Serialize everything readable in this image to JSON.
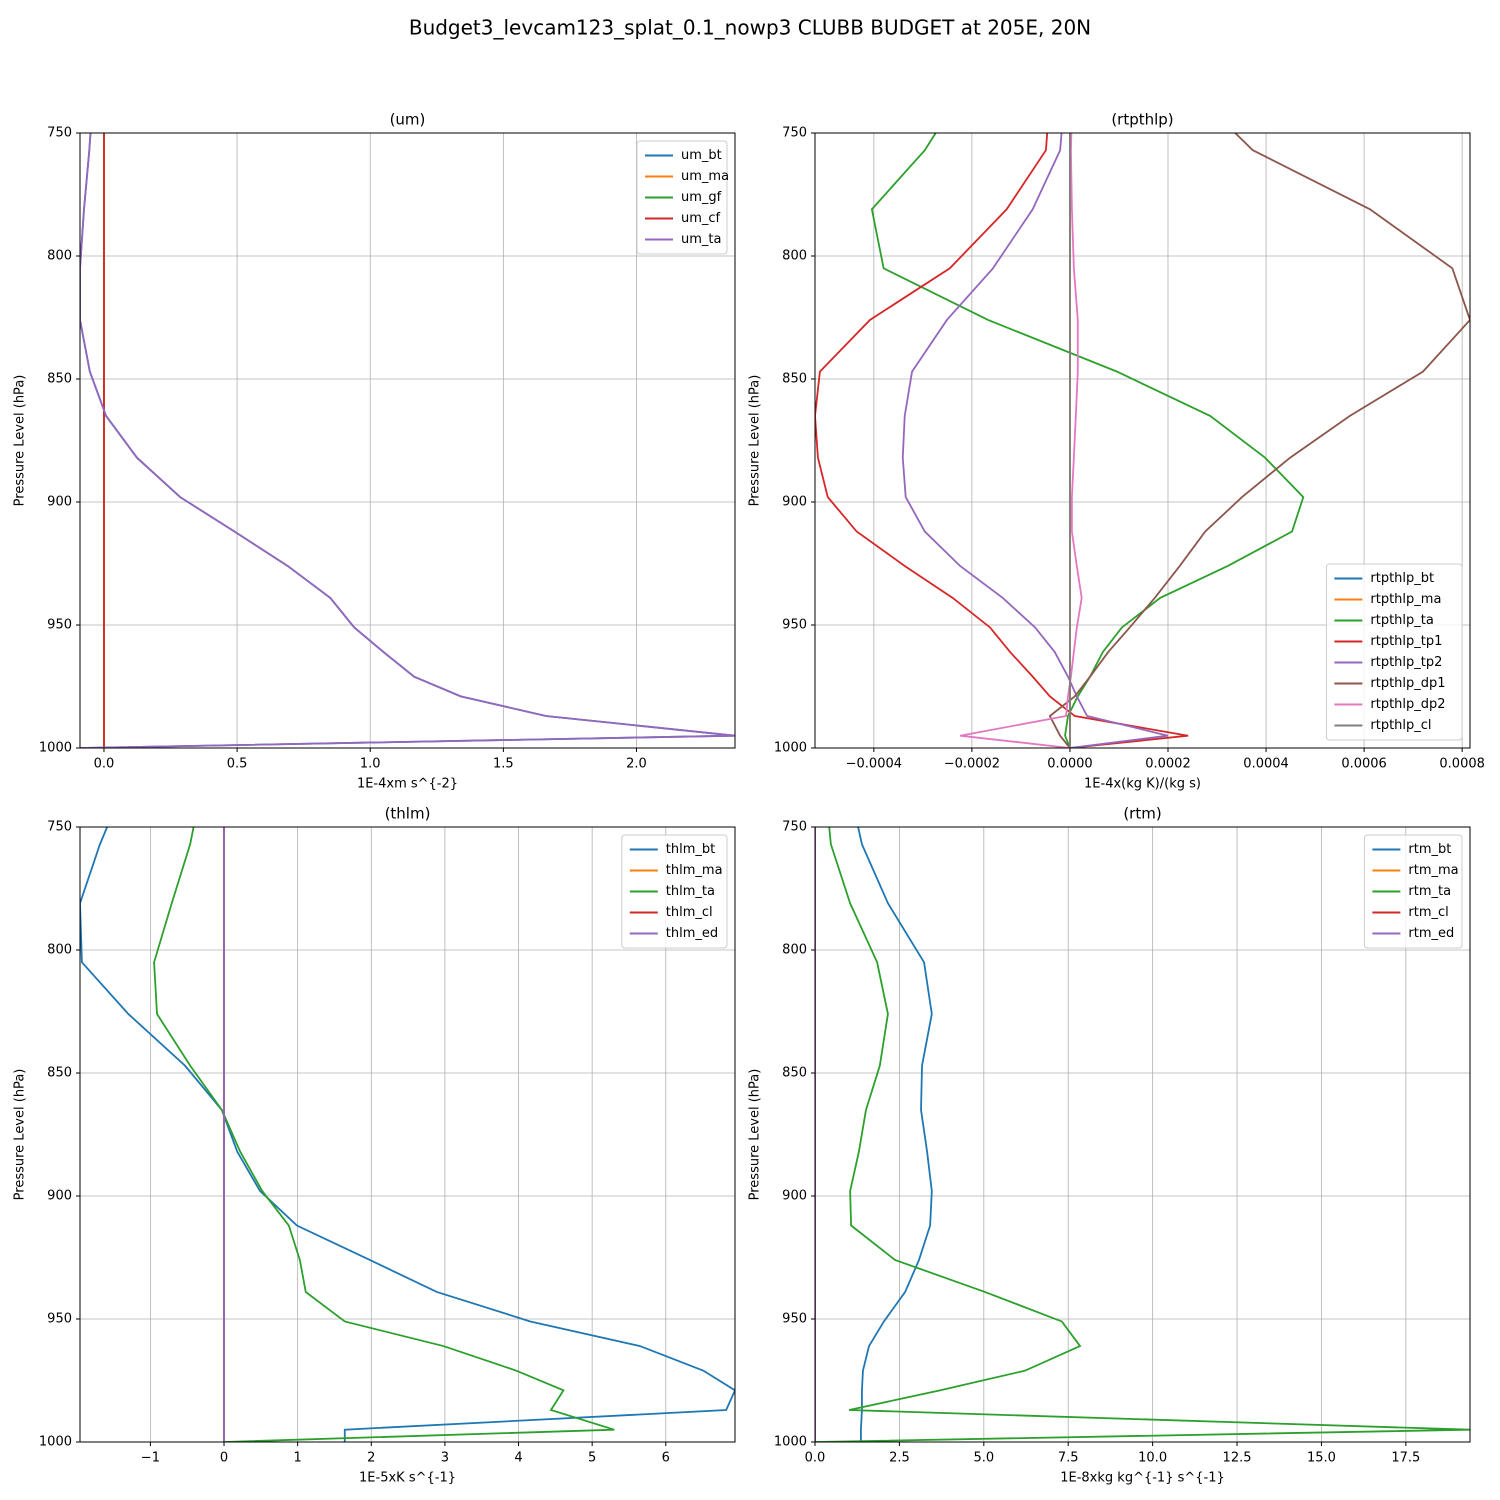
{
  "title": "Budget3_levcam123_splat_0.1_nowp3 CLUBB BUDGET at 205E, 20N",
  "chart_data": [
    {
      "type": "line",
      "title": "(um)",
      "xlabel": "1E-4xm s^{-2}",
      "ylabel": "Pressure Level (hPa)",
      "y": [
        733,
        757,
        781,
        805,
        826,
        847,
        865,
        882,
        898,
        912,
        926,
        939,
        951,
        961,
        971,
        979,
        987,
        995,
        1000
      ],
      "series": [
        {
          "name": "um_bt",
          "color": "#1f77b4",
          "values": [
            -0.04,
            -0.055,
            -0.075,
            -0.09,
            -0.09,
            -0.053,
            0.008,
            0.124,
            0.286,
            0.49,
            0.69,
            0.85,
            0.94,
            1.05,
            1.165,
            1.34,
            1.66,
            2.37,
            -0.09
          ]
        },
        {
          "name": "um_ma",
          "color": "#ff7f0e",
          "values": [
            0,
            0,
            0,
            0,
            0,
            0,
            0,
            0,
            0,
            0,
            0,
            0,
            0,
            0,
            0,
            0,
            0,
            0,
            0
          ]
        },
        {
          "name": "um_gf",
          "color": "#2ca02c",
          "values": [
            0,
            0,
            0,
            0,
            0,
            0,
            0,
            0,
            0,
            0,
            0,
            0,
            0,
            0,
            0,
            0,
            0,
            0,
            0
          ]
        },
        {
          "name": "um_cf",
          "color": "#d62728",
          "values": [
            0,
            0,
            0,
            0,
            0,
            0,
            0,
            0,
            0,
            0,
            0,
            0,
            0,
            0,
            0,
            0,
            0,
            0,
            0
          ]
        },
        {
          "name": "um_ta",
          "color": "#9467bd",
          "values": [
            -0.04,
            -0.055,
            -0.075,
            -0.09,
            -0.09,
            -0.053,
            0.008,
            0.124,
            0.286,
            0.49,
            0.69,
            0.85,
            0.94,
            1.05,
            1.165,
            1.34,
            1.66,
            2.37,
            -0.09
          ]
        }
      ],
      "xlim": [
        -0.09,
        2.37
      ],
      "ylim": [
        1000,
        750
      ],
      "xticks": [
        {
          "value": 0,
          "label": "0.0"
        },
        0.5,
        {
          "value": 1,
          "label": "1.0"
        },
        1.5,
        {
          "value": 2,
          "label": "2.0"
        }
      ],
      "yticks": [
        750,
        800,
        850,
        900,
        950,
        1000
      ],
      "grid": true,
      "legend": "upper right"
    },
    {
      "type": "line",
      "title": "(rtpthlp)",
      "xlabel": "1E-4x(kg K)/(kg s)",
      "ylabel": "Pressure Level (hPa)",
      "y": [
        733,
        757,
        781,
        805,
        826,
        847,
        865,
        882,
        898,
        912,
        926,
        939,
        951,
        961,
        971,
        979,
        987,
        995,
        1000
      ],
      "series": [
        {
          "name": "rtpthlp_bt",
          "color": "#1f77b4",
          "values": [
            0,
            0,
            0,
            0,
            0,
            0,
            0,
            0,
            0,
            0,
            0,
            0,
            0,
            0,
            0,
            0,
            0,
            0,
            0
          ]
        },
        {
          "name": "rtpthlp_ma",
          "color": "#ff7f0e",
          "values": [
            0,
            0,
            0,
            0,
            0,
            0,
            0,
            0,
            0,
            0,
            0,
            0,
            0,
            0,
            0,
            0,
            0,
            0,
            0
          ]
        },
        {
          "name": "rtpthlp_ta",
          "color": "#2ca02c",
          "values": [
            -0.00022,
            -0.000296,
            -0.000404,
            -0.00038,
            -0.000167,
            9.6e-05,
            0.000286,
            0.000398,
            0.000476,
            0.000453,
            0.000322,
            0.000184,
            0.000106,
            6.7e-05,
            4.1e-05,
            1.6e-05,
            -4e-06,
            -1e-05,
            0
          ]
        },
        {
          "name": "rtpthlp_tp1",
          "color": "#d62728",
          "values": [
            -4e-05,
            -4.9e-05,
            -0.000129,
            -0.000245,
            -0.000408,
            -0.00051,
            -0.00052,
            -0.000514,
            -0.000494,
            -0.000435,
            -0.000337,
            -0.000239,
            -0.000163,
            -0.000122,
            -7.6e-05,
            -4.1e-05,
            1e-05,
            0.000241,
            0
          ]
        },
        {
          "name": "rtpthlp_tp2",
          "color": "#9467bd",
          "values": [
            -1e-05,
            -2e-05,
            -7.6e-05,
            -0.000157,
            -0.000251,
            -0.000322,
            -0.000337,
            -0.000341,
            -0.000335,
            -0.000296,
            -0.000224,
            -0.000137,
            -7.1e-05,
            -3.1e-05,
            -4e-06,
            1.4e-05,
            3.5e-05,
            0.0002,
            0
          ]
        },
        {
          "name": "rtpthlp_dp1",
          "color": "#8c564b",
          "values": [
            0.00025,
            0.000373,
            0.000612,
            0.00078,
            0.000816,
            0.00072,
            0.000571,
            0.000449,
            0.000351,
            0.000276,
            0.000224,
            0.000173,
            0.000122,
            7.8e-05,
            4.1e-05,
            1e-05,
            -4.1e-05,
            -2e-05,
            0
          ]
        },
        {
          "name": "rtpthlp_dp2",
          "color": "#e377c2",
          "values": [
            5e-06,
            2e-06,
            4e-06,
            8e-06,
            1.6e-05,
            1.6e-05,
            1.2e-05,
            8e-06,
            4e-06,
            4e-06,
            1.4e-05,
            2.4e-05,
            1.4e-05,
            8e-06,
            2e-06,
            -4e-06,
            -8e-06,
            -0.000224,
            0
          ]
        },
        {
          "name": "rtpthlp_cl",
          "color": "#7f7f7f",
          "values": [
            0,
            0,
            0,
            0,
            0,
            0,
            0,
            0,
            0,
            0,
            0,
            0,
            0,
            0,
            0,
            0,
            0,
            0,
            0
          ]
        }
      ],
      "xlim": [
        -0.00052,
        0.000816
      ],
      "ylim": [
        1000,
        750
      ],
      "xticks": [
        {
          "value": -0.0004,
          "label": "−0.0004"
        },
        {
          "value": -0.0002,
          "label": "−0.0002"
        },
        {
          "value": 0,
          "label": "0.0000"
        },
        {
          "value": 0.0002,
          "label": "0.0002"
        },
        {
          "value": 0.0004,
          "label": "0.0004"
        },
        {
          "value": 0.0006,
          "label": "0.0006"
        },
        {
          "value": 0.0008,
          "label": "0.0008"
        }
      ],
      "yticks": [
        750,
        800,
        850,
        900,
        950,
        1000
      ],
      "grid": true,
      "legend": "lower right"
    },
    {
      "type": "line",
      "title": "(thlm)",
      "xlabel": "1E-5xK s^{-1}",
      "ylabel": "Pressure Level (hPa)",
      "y": [
        733,
        757,
        781,
        805,
        826,
        847,
        865,
        882,
        898,
        912,
        926,
        939,
        951,
        961,
        971,
        979,
        987,
        995,
        1000
      ],
      "series": [
        {
          "name": "thlm_bt",
          "color": "#1f77b4",
          "values": [
            -1.35,
            -1.685,
            -1.956,
            -1.93,
            -1.3,
            -0.53,
            -0.03,
            0.18,
            0.49,
            0.99,
            1.98,
            2.89,
            4.16,
            5.65,
            6.51,
            6.94,
            6.82,
            1.64,
            1.64
          ]
        },
        {
          "name": "thlm_ma",
          "color": "#ff7f0e",
          "values": [
            0,
            0,
            0,
            0,
            0,
            0,
            0,
            0,
            0,
            0,
            0,
            0,
            0,
            0,
            0,
            0,
            0,
            0,
            0
          ]
        },
        {
          "name": "thlm_ta",
          "color": "#2ca02c",
          "values": [
            -0.3,
            -0.46,
            -0.71,
            -0.95,
            -0.91,
            -0.46,
            -0.03,
            0.22,
            0.52,
            0.88,
            1.03,
            1.11,
            1.64,
            2.98,
            3.97,
            4.61,
            4.44,
            5.3,
            0
          ]
        },
        {
          "name": "thlm_cl",
          "color": "#d62728",
          "values": [
            0,
            0,
            0,
            0,
            0,
            0,
            0,
            0,
            0,
            0,
            0,
            0,
            0,
            0,
            0,
            0,
            0,
            0,
            0
          ]
        },
        {
          "name": "thlm_ed",
          "color": "#9467bd",
          "values": [
            0,
            0,
            0,
            0,
            0,
            0,
            0,
            0,
            0,
            0,
            0,
            0,
            0,
            0,
            0,
            0,
            0,
            0,
            0
          ]
        }
      ],
      "xlim": [
        -1.956,
        6.94
      ],
      "ylim": [
        1000,
        750
      ],
      "xticks": [
        {
          "value": -1,
          "label": "−1"
        },
        0,
        1,
        2,
        3,
        4,
        5,
        6
      ],
      "yticks": [
        750,
        800,
        850,
        900,
        950,
        1000
      ],
      "grid": true,
      "legend": "upper right"
    },
    {
      "type": "line",
      "title": "(rtm)",
      "xlabel": "1E-8xkg kg^{-1} s^{-1}",
      "ylabel": "Pressure Level (hPa)",
      "y": [
        733,
        757,
        781,
        805,
        826,
        847,
        865,
        882,
        898,
        912,
        926,
        939,
        951,
        961,
        971,
        979,
        987,
        995,
        1000
      ],
      "series": [
        {
          "name": "rtm_bt",
          "color": "#1f77b4",
          "values": [
            1.0,
            1.39,
            2.16,
            3.23,
            3.46,
            3.17,
            3.14,
            3.32,
            3.46,
            3.41,
            3.08,
            2.67,
            2.04,
            1.6,
            1.42,
            1.39,
            1.39,
            1.36,
            1.36
          ]
        },
        {
          "name": "rtm_ma",
          "color": "#ff7f0e",
          "values": [
            0,
            0,
            0,
            0,
            0,
            0,
            0,
            0,
            0,
            0,
            0,
            0,
            0,
            0,
            0,
            0,
            0,
            0,
            0
          ]
        },
        {
          "name": "rtm_ta",
          "color": "#2ca02c",
          "values": [
            0.3,
            0.47,
            1.04,
            1.84,
            2.16,
            1.92,
            1.51,
            1.3,
            1.04,
            1.07,
            2.37,
            5.03,
            7.31,
            7.85,
            6.22,
            3.7,
            1.01,
            19.4,
            0
          ]
        },
        {
          "name": "rtm_cl",
          "color": "#d62728",
          "values": [
            0,
            0,
            0,
            0,
            0,
            0,
            0,
            0,
            0,
            0,
            0,
            0,
            0,
            0,
            0,
            0,
            0,
            0,
            0
          ]
        },
        {
          "name": "rtm_ed",
          "color": "#9467bd",
          "values": [
            0,
            0,
            0,
            0,
            0,
            0,
            0,
            0,
            0,
            0,
            0,
            0,
            0,
            0,
            0,
            0,
            0,
            0,
            0
          ]
        }
      ],
      "xlim": [
        0,
        19.4
      ],
      "ylim": [
        1000,
        750
      ],
      "xticks": [
        {
          "value": 0,
          "label": "0.0"
        },
        2.5,
        {
          "value": 5,
          "label": "5.0"
        },
        7.5,
        {
          "value": 10,
          "label": "10.0"
        },
        12.5,
        {
          "value": 15,
          "label": "15.0"
        },
        17.5
      ],
      "yticks": [
        750,
        800,
        850,
        900,
        950,
        1000
      ],
      "grid": true,
      "legend": "upper right"
    }
  ]
}
